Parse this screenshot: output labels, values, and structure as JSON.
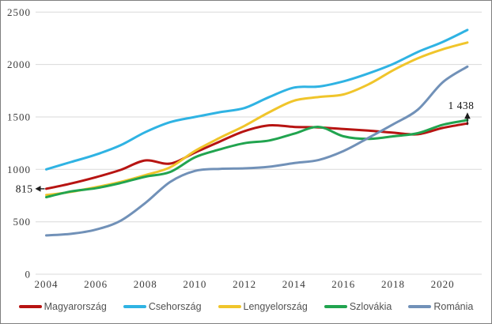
{
  "chart_data": {
    "type": "line",
    "title": "",
    "xlabel": "",
    "ylabel": "",
    "ylim": [
      0,
      2500
    ],
    "grid": "horizontal",
    "legend_position": "bottom",
    "x": [
      2004,
      2005,
      2006,
      2007,
      2008,
      2009,
      2010,
      2011,
      2012,
      2013,
      2014,
      2015,
      2016,
      2017,
      2018,
      2019,
      2020,
      2021
    ],
    "x_ticks": [
      2004,
      2006,
      2008,
      2010,
      2012,
      2014,
      2016,
      2018,
      2020
    ],
    "y_ticks": [
      0,
      500,
      1000,
      1500,
      2000,
      2500
    ],
    "series": [
      {
        "name": "Magyarország",
        "color": "#B71412",
        "values": [
          815,
          865,
          925,
          995,
          1085,
          1055,
          1160,
          1265,
          1365,
          1420,
          1405,
          1400,
          1385,
          1370,
          1350,
          1335,
          1395,
          1438
        ]
      },
      {
        "name": "Csehország",
        "color": "#2FB3E3",
        "values": [
          1000,
          1070,
          1140,
          1230,
          1355,
          1450,
          1500,
          1545,
          1585,
          1690,
          1780,
          1790,
          1840,
          1915,
          2005,
          2120,
          2215,
          2330
        ]
      },
      {
        "name": "Lengyelország",
        "color": "#F0C52B",
        "values": [
          755,
          785,
          830,
          880,
          945,
          1020,
          1175,
          1300,
          1415,
          1545,
          1655,
          1690,
          1715,
          1810,
          1945,
          2060,
          2145,
          2210
        ]
      },
      {
        "name": "Szlovákia",
        "color": "#21A44F",
        "values": [
          735,
          790,
          820,
          870,
          930,
          975,
          1115,
          1190,
          1250,
          1275,
          1340,
          1405,
          1315,
          1290,
          1315,
          1345,
          1425,
          1470
        ]
      },
      {
        "name": "Románia",
        "color": "#7191B8",
        "values": [
          370,
          385,
          425,
          510,
          680,
          880,
          985,
          1005,
          1010,
          1025,
          1060,
          1090,
          1175,
          1300,
          1430,
          1570,
          1830,
          1980
        ]
      }
    ],
    "annotations": [
      {
        "text": "815",
        "target_year": 2004,
        "target_value": 815,
        "arrow": "left"
      },
      {
        "text": "1 438",
        "target_year": 2021,
        "target_value": 1438,
        "arrow": "up"
      }
    ]
  }
}
